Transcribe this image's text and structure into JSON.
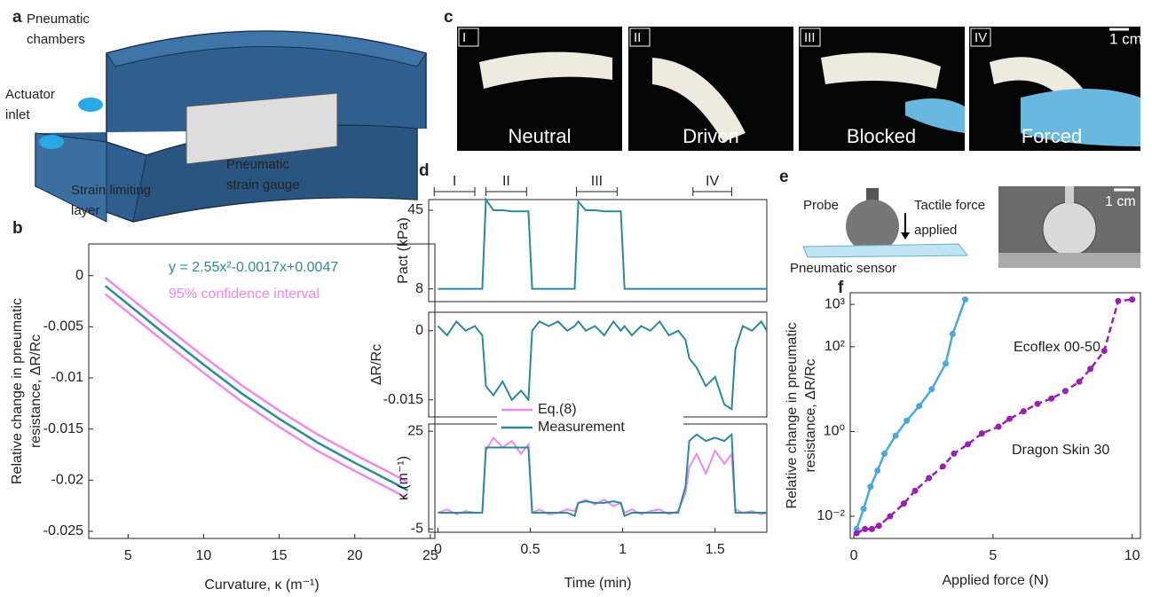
{
  "panel_labels": [
    "a",
    "b",
    "c",
    "d",
    "e",
    "f"
  ],
  "panel_a": {
    "chambers": [
      "Pneumatic",
      "chambers"
    ],
    "inlet": [
      "Actuator",
      "inlet"
    ],
    "gauge": [
      "Pneumatic",
      "strain gauge"
    ],
    "layer": [
      "Strain limiting",
      "layer"
    ]
  },
  "panel_c": {
    "stages": [
      "I",
      "II",
      "III",
      "IV"
    ],
    "captions": [
      "Neutral",
      "Driven",
      "Blocked",
      "Forced"
    ],
    "scale": "1 cm"
  },
  "panel_e": {
    "probe": "Probe",
    "force": [
      "Tactile force",
      "applied"
    ],
    "sensor": "Pneumatic sensor",
    "scale": "1 cm"
  },
  "chart_data": [
    {
      "type": "line",
      "xlabel": "Curvature, κ (m⁻¹)",
      "ylabel": [
        "Relative change in pneumatic",
        "resistance, ΔR/Rc"
      ],
      "x": [
        3.5,
        5,
        7.5,
        10,
        12.5,
        15,
        17.5,
        20,
        22.5,
        23.5
      ],
      "series": [
        {
          "name": "y = 2.55x²-0.0017x+0.0047",
          "color": "#2a8a9a",
          "values": [
            -0.001,
            -0.0028,
            -0.0058,
            -0.0087,
            -0.0115,
            -0.014,
            -0.0163,
            -0.0183,
            -0.0202,
            -0.021
          ]
        },
        {
          "name": "95% confidence interval",
          "color": "#ee88ee",
          "values": [
            -0.0002,
            -0.002,
            -0.005,
            -0.0079,
            -0.0107,
            -0.0132,
            -0.0155,
            -0.0175,
            -0.0194,
            -0.0202
          ]
        },
        {
          "name": null,
          "color": "#ee88ee",
          "values": [
            -0.0018,
            -0.0036,
            -0.0066,
            -0.0095,
            -0.0123,
            -0.0148,
            -0.0171,
            -0.0191,
            -0.021,
            -0.0218
          ]
        }
      ],
      "xlim": [
        2.4,
        25.3
      ],
      "ylim": [
        -0.0257,
        0.0031
      ],
      "xticks": [
        5,
        10,
        15,
        20,
        25
      ],
      "yticks": [
        0,
        -0.005,
        -0.01,
        -0.015,
        -0.02,
        -0.025
      ]
    },
    {
      "type": "line",
      "ylabel": "Pact (kPa)",
      "phases": [
        "I",
        "II",
        "III",
        "IV"
      ],
      "phase_spans": [
        [
          -0.02,
          0.2
        ],
        [
          0.26,
          0.48
        ],
        [
          0.75,
          0.97
        ],
        [
          1.38,
          1.59
        ]
      ],
      "x": [
        0,
        0.05,
        0.1,
        0.15,
        0.2,
        0.24,
        0.26,
        0.3,
        0.35,
        0.4,
        0.45,
        0.49,
        0.51,
        0.55,
        0.6,
        0.65,
        0.7,
        0.74,
        0.76,
        0.8,
        0.85,
        0.9,
        0.95,
        0.99,
        1.01,
        1.05,
        1.1,
        1.15,
        1.2,
        1.25,
        1.3,
        1.34,
        1.36,
        1.4,
        1.45,
        1.5,
        1.55,
        1.59,
        1.61,
        1.65,
        1.7,
        1.75,
        1.78
      ],
      "series": [
        {
          "name": null,
          "color": "#2a8a9a",
          "values": [
            8,
            8,
            8,
            8,
            8,
            8,
            50,
            45,
            45,
            44.5,
            44.5,
            44.5,
            8,
            8,
            8,
            8,
            8,
            8,
            49,
            45,
            45,
            44.5,
            44.5,
            44.5,
            8,
            8,
            8,
            8,
            8,
            8,
            8,
            8,
            8,
            8,
            8,
            8,
            8,
            8,
            8,
            8,
            8,
            8,
            8
          ]
        }
      ],
      "xlim": [
        -0.05,
        1.78
      ],
      "ylim": [
        2,
        50
      ],
      "yticks": [
        8,
        45
      ]
    },
    {
      "type": "line",
      "ylabel": "ΔR/Rc",
      "x": [
        0,
        0.05,
        0.1,
        0.15,
        0.2,
        0.24,
        0.26,
        0.3,
        0.35,
        0.4,
        0.45,
        0.49,
        0.51,
        0.55,
        0.6,
        0.65,
        0.7,
        0.74,
        0.76,
        0.8,
        0.85,
        0.9,
        0.95,
        0.99,
        1.01,
        1.05,
        1.1,
        1.15,
        1.2,
        1.25,
        1.3,
        1.34,
        1.36,
        1.4,
        1.45,
        1.5,
        1.55,
        1.59,
        1.61,
        1.65,
        1.7,
        1.75,
        1.78
      ],
      "series": [
        {
          "name": null,
          "color": "#2a8a9a",
          "values": [
            0.001,
            -0.001,
            0.002,
            0,
            0.001,
            -0.001,
            -0.012,
            -0.014,
            -0.011,
            -0.015,
            -0.013,
            -0.015,
            0,
            0.002,
            0.001,
            0.002,
            0,
            0.001,
            0.002,
            0,
            0.001,
            -0.001,
            0.002,
            0,
            0.001,
            -0.001,
            0.001,
            0,
            0.002,
            -0.001,
            0,
            -0.002,
            -0.006,
            -0.008,
            -0.012,
            -0.01,
            -0.016,
            -0.017,
            -0.004,
            0.001,
            0,
            0.002,
            0
          ]
        }
      ],
      "xlim": [
        -0.05,
        1.78
      ],
      "ylim": [
        -0.0187,
        0.004
      ],
      "yticks": [
        0,
        -0.015
      ]
    },
    {
      "type": "line",
      "xlabel": "Time (min)",
      "ylabel": "κ (m⁻¹)",
      "x": [
        0,
        0.05,
        0.1,
        0.15,
        0.2,
        0.24,
        0.26,
        0.3,
        0.35,
        0.4,
        0.45,
        0.49,
        0.51,
        0.55,
        0.6,
        0.65,
        0.7,
        0.74,
        0.76,
        0.8,
        0.85,
        0.9,
        0.95,
        0.99,
        1.01,
        1.05,
        1.1,
        1.15,
        1.2,
        1.25,
        1.3,
        1.34,
        1.36,
        1.4,
        1.45,
        1.5,
        1.55,
        1.59,
        1.61,
        1.65,
        1.7,
        1.75,
        1.78
      ],
      "series": [
        {
          "name": "Eq.(8)",
          "color": "#ee88ee",
          "values": [
            0,
            1,
            -0.5,
            0.5,
            0,
            0,
            19,
            23,
            20,
            22,
            18,
            21,
            0,
            1,
            -0.5,
            0,
            1,
            0.5,
            3,
            4,
            2.5,
            4,
            2,
            3,
            0,
            1,
            -0.5,
            0.5,
            1,
            -0.5,
            0.5,
            6,
            14,
            18,
            12,
            19,
            15,
            18,
            1,
            0,
            0.5,
            -0.5,
            0
          ]
        },
        {
          "name": "Measurement",
          "color": "#2a8a9a",
          "values": [
            0,
            0,
            0,
            0,
            0,
            0,
            20,
            20,
            20,
            20,
            20,
            20,
            0,
            0,
            0,
            0,
            0,
            -1,
            3,
            3.5,
            3,
            3,
            3.5,
            3,
            -1,
            0,
            0,
            0,
            0,
            0,
            0,
            8,
            22,
            24,
            22,
            23,
            22,
            24,
            0,
            0,
            0,
            0,
            0
          ]
        }
      ],
      "xlim": [
        -0.05,
        1.78
      ],
      "ylim": [
        -6,
        27.2
      ],
      "xticks": [
        0,
        0.5,
        1,
        1.5
      ],
      "yticks": [
        25,
        -5
      ]
    },
    {
      "type": "line",
      "xlabel": "Applied force (N)",
      "ylabel": [
        "Relative change in pneumatic",
        "resistance, ΔR/Rc"
      ],
      "log_y": true,
      "series": [
        {
          "name": "Ecoflex 00-50",
          "color": "#4aa8e0",
          "dashed": false,
          "x": [
            0.1,
            0.35,
            0.6,
            0.85,
            1.1,
            1.5,
            1.9,
            2.35,
            2.8,
            3.3,
            3.55,
            4.0
          ],
          "values": [
            0.005,
            0.015,
            0.05,
            0.12,
            0.3,
            0.8,
            1.8,
            4,
            10,
            40,
            200,
            1300
          ]
        },
        {
          "name": "Dragon Skin 30",
          "color": "#9b1fb5",
          "dashed": true,
          "x": [
            0.1,
            0.4,
            0.65,
            0.9,
            1.3,
            1.8,
            2.2,
            2.7,
            3.2,
            3.6,
            4.1,
            4.6,
            5.2,
            5.6,
            6.1,
            6.6,
            7.1,
            7.6,
            8.1,
            8.5,
            9.0,
            9.5,
            10.0
          ],
          "values": [
            0.004,
            0.005,
            0.005,
            0.006,
            0.01,
            0.02,
            0.04,
            0.08,
            0.15,
            0.3,
            0.5,
            0.9,
            1.3,
            2,
            3,
            4.5,
            6,
            9,
            15,
            30,
            80,
            1200,
            1300
          ]
        }
      ],
      "xlim": [
        -0.13,
        10.3
      ],
      "ylim": [
        0.003,
        1880
      ],
      "xticks": [
        0,
        5,
        10
      ],
      "yticks": [
        {
          "value": 0.01,
          "label": "10⁻²"
        },
        {
          "value": 1,
          "label": "10⁰"
        },
        {
          "value": 100,
          "label": "10²"
        },
        {
          "value": 1000,
          "label": "10³"
        }
      ]
    }
  ]
}
